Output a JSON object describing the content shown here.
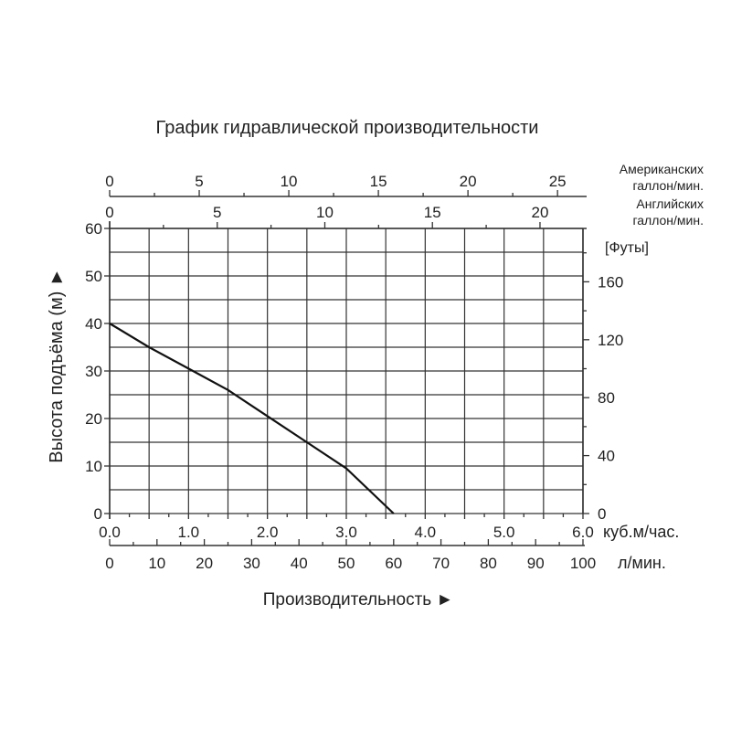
{
  "chart_data": {
    "type": "line",
    "title": "График гидравлической производительности",
    "xlabel": "Производительность ►",
    "ylabel": "Высота подъёма (м) ►",
    "x_unit": "куб.м/час.",
    "xlim": [
      0,
      6.0
    ],
    "ylim": [
      0,
      60
    ],
    "grid": true,
    "x_ticks": [
      "0.0",
      "1.0",
      "2.0",
      "3.0",
      "4.0",
      "5.0",
      "6.0"
    ],
    "y_ticks": [
      "0",
      "10",
      "20",
      "30",
      "40",
      "50",
      "60"
    ],
    "series": [
      {
        "x": [
          0,
          0.5,
          1.0,
          1.5,
          2.0,
          2.5,
          3.0,
          3.6
        ],
        "y": [
          40,
          35,
          30.5,
          26,
          20.5,
          15,
          9.5,
          0
        ]
      }
    ],
    "secondary_axes": {
      "lpm": {
        "unit": "л/мин.",
        "ticks": [
          "0",
          "10",
          "20",
          "30",
          "40",
          "50",
          "60",
          "70",
          "80",
          "90",
          "100"
        ]
      },
      "us_gal": {
        "unit_line1": "Американских",
        "unit_line2": "галлон/мин.",
        "ticks": [
          "0",
          "5",
          "10",
          "15",
          "20",
          "25"
        ]
      },
      "imp_gal": {
        "unit_line1": "Английских",
        "unit_line2": "галлон/мин.",
        "ticks": [
          "0",
          "5",
          "10",
          "15",
          "20"
        ]
      },
      "feet": {
        "unit": "[Футы]",
        "ticks": [
          "0",
          "40",
          "80",
          "120",
          "160"
        ]
      }
    },
    "line_color": "#111111"
  }
}
